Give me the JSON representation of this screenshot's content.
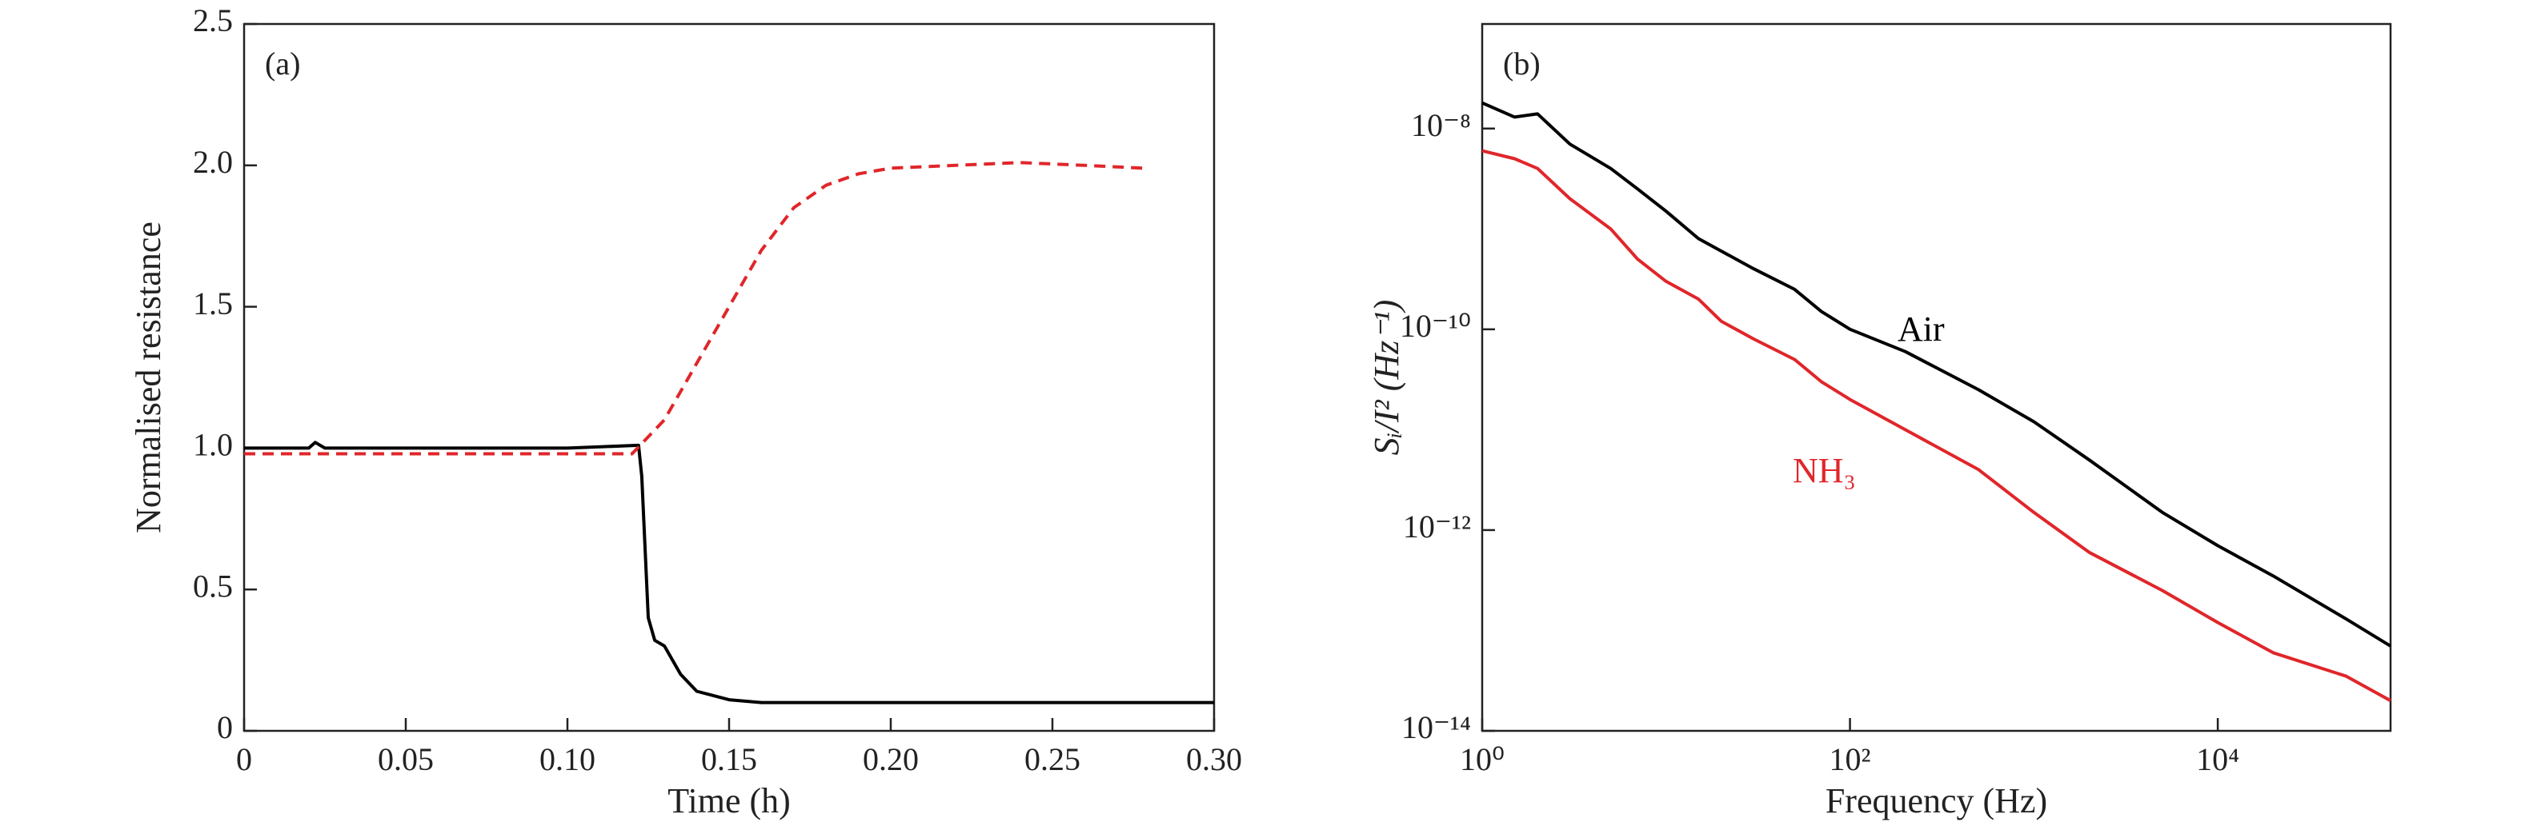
{
  "chart_data": [
    {
      "type": "line",
      "panel_label": "(a)",
      "xlabel": "Time (h)",
      "ylabel": "Normalised resistance",
      "xlim": [
        0,
        0.3
      ],
      "ylim": [
        0,
        2.5
      ],
      "xticks": [
        0,
        0.05,
        {
          "value": 0.1,
          "label": "0.10"
        },
        0.15,
        {
          "value": 0.2,
          "label": "0.20"
        },
        0.25,
        {
          "value": 0.3,
          "label": "0.30"
        }
      ],
      "yticks": [
        0,
        0.5,
        {
          "value": 1,
          "label": "1.0"
        },
        1.5,
        {
          "value": 2,
          "label": "2.0"
        },
        2.5
      ],
      "series": [
        {
          "color": "#000000",
          "linestyle": "solid",
          "x": [
            0,
            0.02,
            0.022,
            0.025,
            0.05,
            0.1,
            0.122,
            0.123,
            0.125,
            0.127,
            0.13,
            0.135,
            0.14,
            0.15,
            0.16,
            0.2,
            0.3
          ],
          "values": [
            1.0,
            1.0,
            1.02,
            1.0,
            1.0,
            1.0,
            1.01,
            0.9,
            0.4,
            0.32,
            0.3,
            0.2,
            0.14,
            0.11,
            0.1,
            0.1,
            0.1
          ]
        },
        {
          "color": "#e0262a",
          "linestyle": "dashed",
          "x": [
            0,
            0.05,
            0.12,
            0.13,
            0.14,
            0.15,
            0.16,
            0.17,
            0.18,
            0.19,
            0.2,
            0.22,
            0.24,
            0.26,
            0.278
          ],
          "values": [
            0.98,
            0.98,
            0.98,
            1.1,
            1.3,
            1.5,
            1.7,
            1.85,
            1.93,
            1.97,
            1.99,
            2.0,
            2.01,
            2.0,
            1.99
          ]
        }
      ]
    },
    {
      "type": "line",
      "panel_label": "(b)",
      "xlabel": "Frequency (Hz)",
      "ylabel": "Sᵢ/I² (Hz⁻¹)",
      "xscale": "log",
      "yscale": "log",
      "xlim": [
        1,
        87000
      ],
      "ylim": [
        1e-14,
        1.1e-07
      ],
      "xticks": [
        {
          "value": 1,
          "label": "10⁰"
        },
        {
          "value": 100,
          "label": "10²"
        },
        {
          "value": 10000,
          "label": "10⁴"
        }
      ],
      "yticks": [
        {
          "value": 1e-14,
          "label": "10⁻¹⁴"
        },
        {
          "value": 1e-12,
          "label": "10⁻¹²"
        },
        {
          "value": 1e-10,
          "label": "10⁻¹⁰"
        },
        {
          "value": 1e-08,
          "label": "10⁻⁸"
        }
      ],
      "annotations": [
        {
          "text": "Air",
          "color": "#000000"
        },
        {
          "text": "NH₃",
          "color": "#e0262a"
        }
      ],
      "series": [
        {
          "color": "#000000",
          "linestyle": "solid",
          "x": [
            1,
            1.5,
            2,
            3,
            5,
            7,
            10,
            15,
            20,
            30,
            50,
            70,
            100,
            200,
            500,
            1000,
            2000,
            5000,
            10000,
            20000,
            50000,
            87000
          ],
          "values": [
            1.8e-08,
            1.3e-08,
            1.4e-08,
            7e-09,
            4e-09,
            2.5e-09,
            1.5e-09,
            8e-10,
            6e-10,
            4e-10,
            2.5e-10,
            1.5e-10,
            1e-10,
            6e-11,
            2.5e-11,
            1.2e-11,
            5e-12,
            1.5e-12,
            7e-13,
            3.5e-13,
            1.3e-13,
            7e-14
          ]
        },
        {
          "color": "#e0262a",
          "linestyle": "solid",
          "x": [
            1,
            1.5,
            2,
            3,
            5,
            7,
            10,
            15,
            20,
            30,
            50,
            70,
            100,
            200,
            500,
            1000,
            2000,
            5000,
            10000,
            20000,
            50000,
            87000
          ],
          "values": [
            6e-09,
            5e-09,
            4e-09,
            2e-09,
            1e-09,
            5e-10,
            3e-10,
            2e-10,
            1.2e-10,
            8e-11,
            5e-11,
            3e-11,
            2e-11,
            1e-11,
            4e-12,
            1.5e-12,
            6e-13,
            2.5e-13,
            1.2e-13,
            6e-14,
            3.5e-14,
            2e-14
          ]
        }
      ]
    }
  ]
}
